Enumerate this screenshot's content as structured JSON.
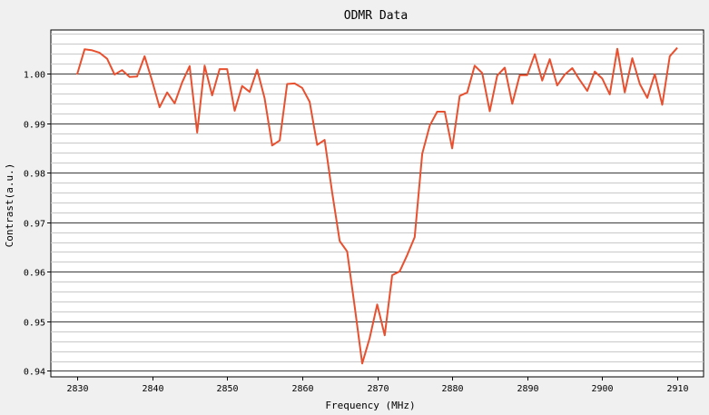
{
  "chart_data": {
    "type": "line",
    "title": "ODMR Data",
    "xlabel": "Frequency (MHz)",
    "ylabel": "Contrast(a.u.)",
    "xlim": [
      2826.5,
      2913.5
    ],
    "ylim": [
      0.9388,
      1.0088
    ],
    "x_ticks": [
      2830,
      2840,
      2850,
      2860,
      2870,
      2880,
      2890,
      2900,
      2910
    ],
    "y_ticks": [
      0.94,
      0.95,
      0.96,
      0.97,
      0.98,
      0.99,
      1.0
    ],
    "x_tick_labels": [
      "2830",
      "2840",
      "2850",
      "2860",
      "2870",
      "2880",
      "2890",
      "2900",
      "2910"
    ],
    "y_tick_labels": [
      "0.94",
      "0.95",
      "0.96",
      "0.97",
      "0.98",
      "0.99",
      "1.00"
    ],
    "y_minor_step": 0.002,
    "grid": true,
    "legend": "none",
    "line_color": "#e8502f",
    "plot_background": "#ffffff",
    "series": [
      {
        "x": [
          2830,
          2831,
          2832,
          2833,
          2834,
          2835,
          2836,
          2837,
          2838,
          2839,
          2840,
          2841,
          2842,
          2843,
          2844,
          2845,
          2846,
          2847,
          2848,
          2849,
          2850,
          2851,
          2852,
          2853,
          2854,
          2855,
          2856,
          2857,
          2858,
          2859,
          2860,
          2861,
          2862,
          2863,
          2864,
          2865,
          2866,
          2867,
          2868,
          2869,
          2870,
          2871,
          2872,
          2873,
          2874,
          2875,
          2876,
          2877,
          2878,
          2879,
          2880,
          2881,
          2882,
          2883,
          2884,
          2885,
          2886,
          2887,
          2888,
          2889,
          2890,
          2891,
          2892,
          2893,
          2894,
          2895,
          2896,
          2897,
          2898,
          2899,
          2900,
          2901,
          2902,
          2903,
          2904,
          2905,
          2906,
          2907,
          2908,
          2909,
          2910
        ],
        "values": [
          0.9998,
          1.0049,
          1.0047,
          1.0042,
          1.003,
          0.9998,
          1.0007,
          0.9993,
          0.9994,
          1.0035,
          0.9985,
          0.9932,
          0.9962,
          0.994,
          0.9982,
          1.0015,
          0.9881,
          1.0016,
          0.9956,
          1.0009,
          1.0009,
          0.9925,
          0.9975,
          0.9963,
          1.0008,
          0.995,
          0.9855,
          0.9865,
          0.9979,
          0.998,
          0.9971,
          0.9943,
          0.9856,
          0.9866,
          0.976,
          0.9662,
          0.9641,
          0.953,
          0.9415,
          0.9466,
          0.9534,
          0.9472,
          0.9593,
          0.9601,
          0.9634,
          0.967,
          0.9838,
          0.9895,
          0.9923,
          0.9923,
          0.9849,
          0.9955,
          0.9962,
          1.0016,
          1.0001,
          0.9924,
          0.9996,
          1.0012,
          0.9939,
          0.9997,
          0.9997,
          1.0039,
          0.9986,
          1.0029,
          0.9976,
          0.9998,
          1.0011,
          0.9987,
          0.9965,
          1.0004,
          0.999,
          0.9958,
          1.005,
          0.9962,
          1.0031,
          0.9979,
          0.9951,
          0.9999,
          0.9937,
          1.0035,
          1.0052
        ]
      }
    ]
  }
}
